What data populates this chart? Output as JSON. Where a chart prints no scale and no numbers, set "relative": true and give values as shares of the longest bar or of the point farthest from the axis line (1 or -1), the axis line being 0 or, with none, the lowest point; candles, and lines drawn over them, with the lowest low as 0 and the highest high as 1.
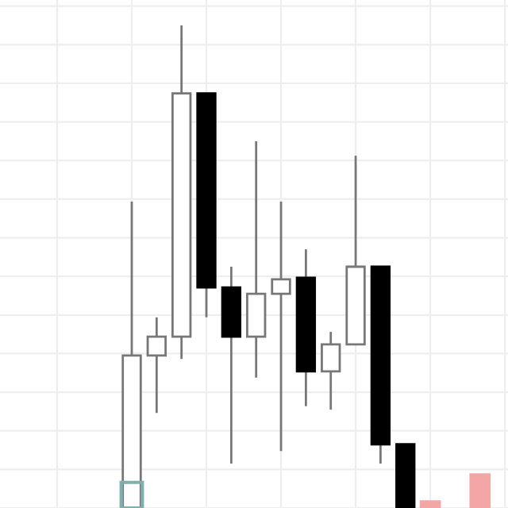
{
  "chart_data": {
    "type": "candlestick",
    "relative": true,
    "grid": true,
    "categories": [
      null,
      null,
      null,
      null,
      null,
      null,
      null,
      null,
      null,
      null,
      null,
      null,
      null,
      null,
      null
    ],
    "ohlc": [
      [
        0,
        0.635,
        0,
        0.316
      ],
      [
        0.316,
        0.395,
        0.197,
        0.355
      ],
      [
        0.355,
        1,
        0.309,
        0.859
      ],
      [
        0.859,
        0.859,
        0.395,
        0.457
      ],
      [
        0.457,
        0.5,
        0.092,
        0.355
      ],
      [
        0.355,
        0.76,
        0.27,
        0.444
      ],
      [
        0.444,
        0.635,
        0.118,
        0.474
      ],
      [
        0.477,
        0.536,
        0.211,
        0.283
      ],
      [
        0.283,
        0.365,
        0.204,
        0.339
      ],
      [
        0.339,
        0.73,
        0.339,
        0.5
      ],
      [
        0.5,
        0.5,
        0.092,
        0.132
      ],
      [
        0.132,
        0.132,
        0,
        0
      ],
      null,
      null,
      null
    ],
    "series": [
      {
        "type": "bar",
        "colors": [
          "#7fb0ad",
          null,
          null,
          null,
          null,
          null,
          null,
          null,
          null,
          null,
          null,
          null,
          "#f4a6a6",
          null,
          "#f4a6a6"
        ],
        "values": [
          0.053,
          null,
          null,
          null,
          null,
          null,
          null,
          null,
          null,
          null,
          null,
          null,
          0.016,
          null,
          0.072
        ]
      }
    ]
  }
}
